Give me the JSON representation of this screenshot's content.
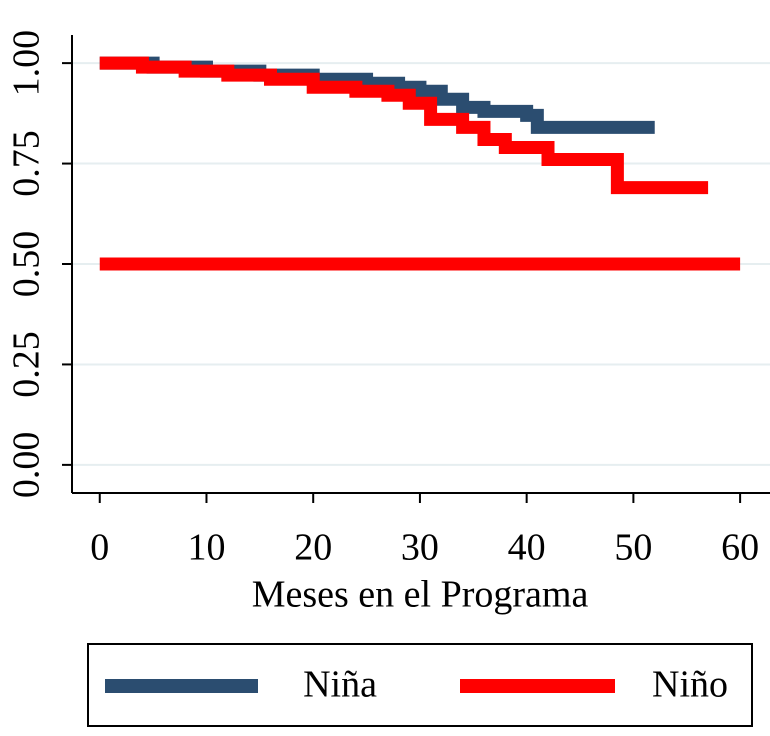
{
  "chart_data": {
    "type": "step",
    "xlabel": "Meses en el Programa",
    "xlim": [
      -2.6,
      62.8
    ],
    "xticks": [
      0,
      10,
      20,
      30,
      40,
      50,
      60
    ],
    "ylim": [
      -0.07,
      1.07
    ],
    "yticks": [
      {
        "value": 0,
        "label": "0.00"
      },
      {
        "value": 0.25,
        "label": "0.25"
      },
      {
        "value": 0.5,
        "label": "0.50"
      },
      {
        "value": 0.75,
        "label": "0.75"
      },
      {
        "value": 1,
        "label": "1.00"
      }
    ],
    "grid": true,
    "legend": "bottom",
    "series": [
      {
        "name": "Niña",
        "color": "#2b4d70",
        "x": [
          0,
          5,
          10,
          15,
          20,
          25,
          28,
          30,
          32,
          34,
          36,
          40,
          41,
          52
        ],
        "values": [
          1.0,
          0.99,
          0.98,
          0.97,
          0.96,
          0.95,
          0.94,
          0.93,
          0.91,
          0.89,
          0.88,
          0.87,
          0.84,
          0.84
        ]
      },
      {
        "name": "Niño",
        "color": "#ff0000",
        "x": [
          0,
          4,
          8,
          12,
          16,
          20,
          24,
          27,
          29,
          31,
          34,
          36,
          38,
          42,
          48.5,
          57
        ],
        "values": [
          1.0,
          0.99,
          0.98,
          0.97,
          0.96,
          0.94,
          0.93,
          0.92,
          0.9,
          0.86,
          0.84,
          0.81,
          0.79,
          0.76,
          0.69,
          0.69
        ]
      }
    ],
    "reference_line": {
      "y": 0.5,
      "x": [
        0,
        60
      ],
      "color": "#ff0000"
    }
  }
}
